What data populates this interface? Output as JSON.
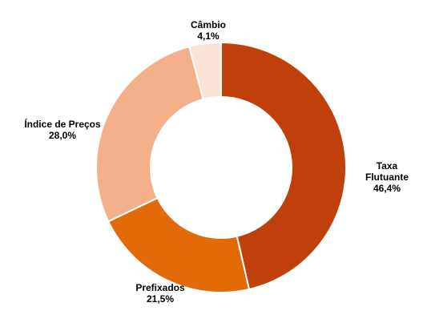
{
  "chart_data": {
    "type": "pie",
    "donut": true,
    "title": "",
    "categories": [
      "Taxa Flutuante",
      "Prefixados",
      "Índice de Preços",
      "Câmbio"
    ],
    "values": [
      46.4,
      21.5,
      28.0,
      4.1
    ],
    "value_labels": [
      "46,4%",
      "21,5%",
      "28,0%",
      "4,1%"
    ],
    "legend": "none",
    "slices": [
      {
        "name_lines": [
          "Taxa",
          "Flutuante"
        ],
        "label": "46,4%",
        "value": 46.4,
        "color": "#C0400C"
      },
      {
        "name_lines": [
          "Prefixados"
        ],
        "label": "21,5%",
        "value": 21.5,
        "color": "#E26A08"
      },
      {
        "name_lines": [
          "Índice de Preços"
        ],
        "label": "28,0%",
        "value": 28.0,
        "color": "#F4B08A"
      },
      {
        "name_lines": [
          "Câmbio"
        ],
        "label": "4,1%",
        "value": 4.1,
        "color": "#FCE3D8"
      }
    ]
  }
}
